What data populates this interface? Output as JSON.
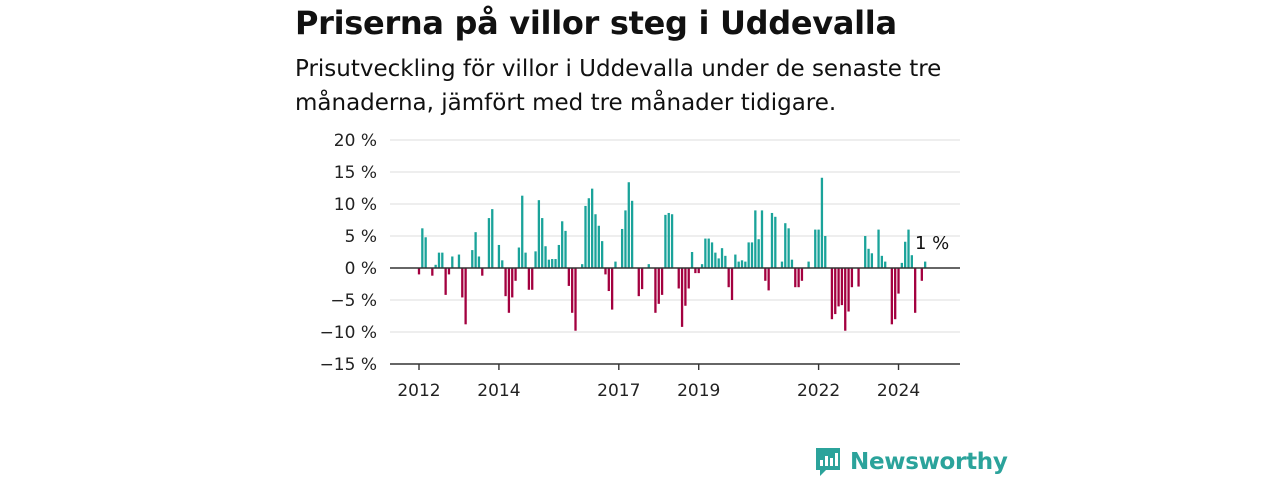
{
  "title": "Priserna på villor steg i Uddevalla",
  "subtitle": "Prisutveckling för villor i Uddevalla under de senaste tre månaderna, jämfört med tre månader tidigare.",
  "brand": {
    "name": "Newsworthy",
    "icon": "newsworthy-logo-icon",
    "color": "#2ba39b"
  },
  "chart_data": {
    "type": "bar",
    "title": "Priserna på villor steg i Uddevalla",
    "xlabel": "",
    "ylabel": "",
    "ylim": [
      -15,
      20
    ],
    "y_ticks": [
      "20 %",
      "15 %",
      "10 %",
      "5 %",
      "0 %",
      "−5 %",
      "−10 %",
      "−15 %"
    ],
    "y_tick_values": [
      20,
      15,
      10,
      5,
      0,
      -5,
      -10,
      -15
    ],
    "x_ticks": [
      {
        "label": "2012",
        "month_index": 0
      },
      {
        "label": "2014",
        "month_index": 24
      },
      {
        "label": "2017",
        "month_index": 60
      },
      {
        "label": "2019",
        "month_index": 84
      },
      {
        "label": "2022",
        "month_index": 120
      },
      {
        "label": "2024",
        "month_index": 144
      }
    ],
    "start": "2012-01",
    "grid": true,
    "colors": {
      "positive": "#1aa39a",
      "negative": "#a3003f"
    },
    "last_value_label": "1 %",
    "values": [
      -1,
      6.2,
      4.8,
      0,
      -1.2,
      0.5,
      2.4,
      2.4,
      -4.2,
      -1,
      1.8,
      0,
      2.1,
      -4.6,
      -8.8,
      0,
      2.8,
      5.6,
      1.8,
      -1.2,
      0,
      7.8,
      9.2,
      0,
      3.6,
      1.2,
      -4.4,
      -7,
      -4.6,
      -2,
      3.2,
      11.3,
      2.4,
      -3.4,
      -3.4,
      2.6,
      10.6,
      7.8,
      3.4,
      1.3,
      1.4,
      1.4,
      3.6,
      7.3,
      5.8,
      -2.8,
      -7,
      -9.8,
      0,
      0.6,
      9.7,
      10.9,
      12.4,
      8.4,
      6.6,
      4.2,
      -1,
      -3.6,
      -6.5,
      1,
      0,
      6.1,
      9,
      13.4,
      10.5,
      0,
      -4.4,
      -3.3,
      0,
      0.6,
      0,
      -7,
      -5.6,
      -4.2,
      8.3,
      8.6,
      8.4,
      0,
      -3.2,
      -9.2,
      -5.9,
      -3.2,
      2.5,
      -0.8,
      -0.8,
      0.6,
      4.6,
      4.6,
      4,
      2.4,
      1.5,
      3.1,
      1.9,
      -3,
      -5,
      2.1,
      1,
      1.2,
      1,
      4,
      4,
      9,
      4.5,
      9,
      -2,
      -3.5,
      8.6,
      8,
      0,
      1,
      7,
      6.2,
      1.3,
      -3,
      -3,
      -2,
      0,
      1,
      0,
      6,
      6,
      14.1,
      5,
      0,
      -8,
      -7.2,
      -6,
      -5.8,
      -9.8,
      -6.8,
      -3,
      0,
      -2.9,
      0,
      5,
      3,
      2.3,
      0,
      6,
      1.9,
      1,
      0,
      -8.8,
      -8,
      -4,
      0.8,
      4.1,
      6,
      2,
      -7,
      0,
      -2,
      1
    ]
  }
}
